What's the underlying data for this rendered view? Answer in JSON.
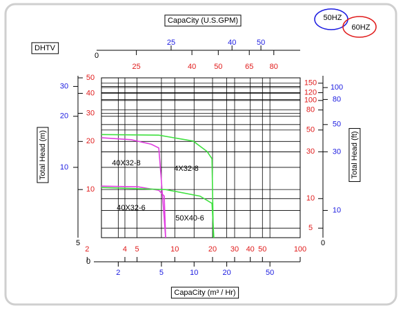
{
  "chart_data": {
    "type": "line",
    "log_scale": true,
    "grid": true,
    "label": "DHTV",
    "legend": [
      {
        "name": "50HZ",
        "color": "#1a1ae0"
      },
      {
        "name": "60HZ",
        "color": "#e01a1a"
      }
    ],
    "top_axis": {
      "title": "CapaCity (U.S.GPM)",
      "origin_label": 0,
      "rows": [
        {
          "color": "#1a1ae0",
          "xlim": [
            14.6,
            67.7
          ],
          "xticks": [
            25,
            40,
            50
          ]
        },
        {
          "color": "#e01a1a",
          "xlim": [
            18.6,
            100
          ],
          "xticks": [
            25,
            40,
            50,
            65,
            80
          ]
        }
      ]
    },
    "bottom_axis": {
      "title": "CapaCity (m³ / Hr)",
      "origin_label": 0,
      "rows": [
        {
          "color": "#e01a1a",
          "xlim": [
            2.6,
            100
          ],
          "xticks": [
            2,
            4,
            5,
            10,
            20,
            30,
            40,
            50,
            100
          ]
        },
        {
          "color": "#1a1ae0",
          "xlim": [
            1.4,
            95
          ],
          "xticks": [
            2,
            5,
            10,
            20,
            50
          ]
        }
      ]
    },
    "left_axis": {
      "title": "Total Head (m)",
      "origin_label": 5,
      "rows": [
        {
          "color": "#e01a1a",
          "ylim": [
            5,
            50
          ],
          "yticks": [
            10,
            20,
            30,
            40,
            50
          ]
        },
        {
          "color": "#1a1ae0",
          "ylim": [
            3.85,
            33.7
          ],
          "yticks": [
            10,
            20,
            30
          ]
        }
      ]
    },
    "right_axis": {
      "title": "Total Head (ft)",
      "origin_label": 0,
      "rows": [
        {
          "color": "#e01a1a",
          "ylim": [
            4,
            170
          ],
          "yticks": [
            5,
            10,
            30,
            50,
            80,
            100,
            120,
            150
          ]
        },
        {
          "color": "#1a1ae0",
          "ylim": [
            6,
            120
          ],
          "yticks": [
            10,
            30,
            50,
            80,
            100
          ]
        }
      ]
    },
    "series": [
      {
        "name": "40X32-8",
        "color": "#e03ee0",
        "x": [
          2.6,
          4.5,
          6.5,
          7.45,
          7.8,
          8.45
        ],
        "values": [
          21.1,
          20.5,
          19.2,
          18.2,
          11.6,
          5
        ]
      },
      {
        "name": "4X32-8",
        "color": "#3ee03e",
        "x": [
          2.6,
          7.45,
          14,
          18.1,
          19.8,
          20.3
        ],
        "values": [
          22.1,
          21.9,
          20.1,
          17.3,
          15.6,
          5
        ]
      },
      {
        "name": "40X32-6",
        "color": "#e03ee0",
        "x": [
          2.6,
          5.1,
          7.45,
          8.24,
          8.45
        ],
        "values": [
          10.5,
          10.4,
          9.9,
          9.1,
          5
        ]
      },
      {
        "name": "50X40-6",
        "color": "#3ee03e",
        "x": [
          2.6,
          8.45,
          15.9,
          19.8,
          20.5
        ],
        "values": [
          10.3,
          10.0,
          9.1,
          8.2,
          5
        ]
      }
    ]
  }
}
